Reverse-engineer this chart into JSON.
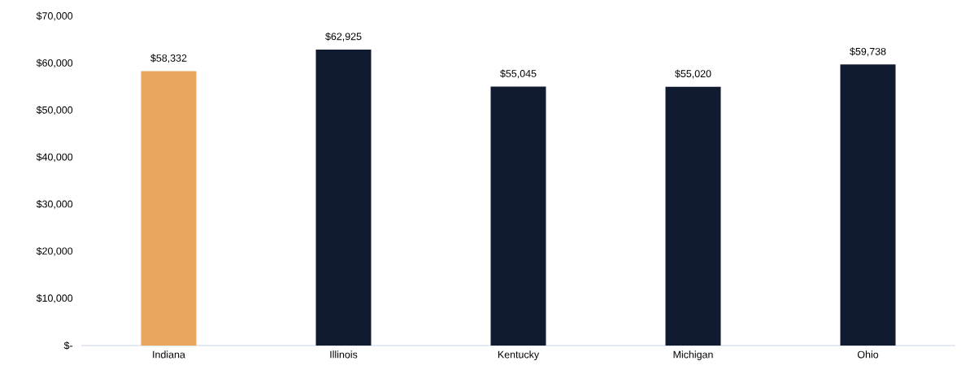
{
  "chart_data": {
    "type": "bar",
    "categories": [
      "Indiana",
      "Illinois",
      "Kentucky",
      "Michigan",
      "Ohio"
    ],
    "values": [
      58332,
      62925,
      55045,
      55020,
      59738
    ],
    "colors": [
      "#e9a65f",
      "#101a30",
      "#101a30",
      "#101a30",
      "#101a30"
    ],
    "value_labels": [
      "$58,332",
      "$62,925",
      "$55,045",
      "$55,020",
      "$59,738"
    ],
    "ylim": [
      0,
      70000
    ],
    "yticks": [
      {
        "value": 0,
        "label": "$-"
      },
      {
        "value": 10000,
        "label": "$10,000"
      },
      {
        "value": 20000,
        "label": "$20,000"
      },
      {
        "value": 30000,
        "label": "$30,000"
      },
      {
        "value": 40000,
        "label": "$40,000"
      },
      {
        "value": 50000,
        "label": "$50,000"
      },
      {
        "value": 60000,
        "label": "$60,000"
      },
      {
        "value": 70000,
        "label": "$70,000"
      }
    ]
  }
}
